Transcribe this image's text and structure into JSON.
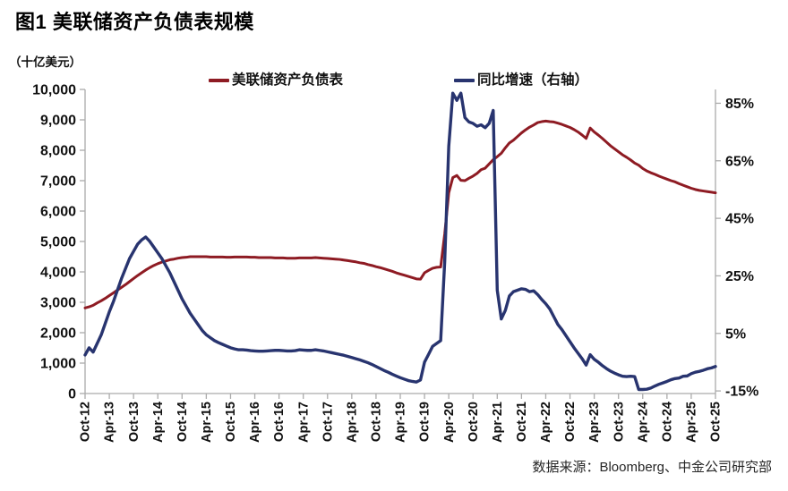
{
  "header": {
    "title": "图1  美联储资产负债表规模",
    "unit_label": "（十亿美元）"
  },
  "legend": [
    {
      "label": "美联储资产负债表",
      "color": "#8E1B23"
    },
    {
      "label": "同比增速（右轴）",
      "color": "#28346F"
    }
  ],
  "footer": {
    "source": "数据来源：Bloomberg、中金公司研究部"
  },
  "chart_data": {
    "type": "line",
    "title": "图1 美联储资产负债表规模",
    "unit": "十亿美元",
    "grid": false,
    "legend_position": "top",
    "x_frequency": "monthly",
    "x_range": [
      "Oct-12",
      "Oct-25"
    ],
    "x_tick_labels": [
      "Oct-12",
      "Apr-13",
      "Oct-13",
      "Apr-14",
      "Oct-14",
      "Apr-15",
      "Oct-15",
      "Apr-16",
      "Oct-16",
      "Apr-17",
      "Oct-17",
      "Apr-18",
      "Oct-18",
      "Apr-19",
      "Oct-19",
      "Apr-20",
      "Oct-20",
      "Apr-21",
      "Oct-21",
      "Apr-22",
      "Oct-22",
      "Apr-23",
      "Oct-23",
      "Apr-24",
      "Oct-24",
      "Apr-25",
      "Oct-25"
    ],
    "left_axis": {
      "label": "十亿美元",
      "min": 0,
      "max": 10000,
      "ticks": [
        0,
        1000,
        2000,
        3000,
        4000,
        5000,
        6000,
        7000,
        8000,
        9000,
        10000
      ],
      "format": "comma"
    },
    "right_axis": {
      "label": "%",
      "min": -15.9,
      "max": 89.8,
      "ticks": [
        -15,
        5,
        25,
        45,
        65,
        85
      ],
      "suffix": "%"
    },
    "series": [
      {
        "name": "美联储资产负债表",
        "axis": "left",
        "color": "#8E1B23",
        "width": 3,
        "values": [
          2815,
          2850,
          2900,
          2980,
          3050,
          3130,
          3220,
          3310,
          3400,
          3490,
          3580,
          3680,
          3780,
          3880,
          3970,
          4060,
          4140,
          4210,
          4270,
          4320,
          4360,
          4400,
          4420,
          4450,
          4470,
          4480,
          4500,
          4500,
          4500,
          4500,
          4500,
          4490,
          4490,
          4490,
          4490,
          4480,
          4480,
          4490,
          4490,
          4490,
          4490,
          4480,
          4480,
          4470,
          4470,
          4470,
          4470,
          4460,
          4460,
          4460,
          4450,
          4450,
          4450,
          4460,
          4460,
          4460,
          4460,
          4470,
          4460,
          4450,
          4440,
          4430,
          4420,
          4410,
          4390,
          4370,
          4350,
          4330,
          4300,
          4280,
          4240,
          4210,
          4170,
          4140,
          4100,
          4060,
          4020,
          3970,
          3930,
          3890,
          3850,
          3810,
          3770,
          3760,
          3970,
          4050,
          4120,
          4150,
          4160,
          5250,
          6600,
          7100,
          7170,
          7010,
          7000,
          7080,
          7150,
          7240,
          7360,
          7410,
          7550,
          7690,
          7790,
          7900,
          8080,
          8240,
          8330,
          8450,
          8570,
          8670,
          8760,
          8830,
          8910,
          8940,
          8960,
          8940,
          8930,
          8890,
          8850,
          8800,
          8750,
          8680,
          8600,
          8500,
          8390,
          8730,
          8600,
          8500,
          8390,
          8270,
          8150,
          8050,
          7950,
          7850,
          7770,
          7680,
          7580,
          7510,
          7400,
          7320,
          7260,
          7210,
          7150,
          7100,
          7050,
          7000,
          6960,
          6900,
          6850,
          6800,
          6750,
          6710,
          6680,
          6660,
          6640,
          6620,
          6600
        ]
      },
      {
        "name": "同比增速（右轴）",
        "axis": "right",
        "color": "#28346F",
        "width": 3.4,
        "values": [
          -2.5,
          0.0,
          -1.5,
          1.5,
          4.5,
          8.5,
          12.5,
          16,
          20,
          24,
          27.5,
          31,
          33.5,
          36,
          37.5,
          38.5,
          37,
          35,
          33,
          31,
          28.5,
          26,
          23,
          20,
          17,
          14.5,
          12,
          10,
          8,
          6,
          4.5,
          3.5,
          2.5,
          1.8,
          1.2,
          0.6,
          0,
          -0.4,
          -0.7,
          -0.7,
          -0.8,
          -1.0,
          -1.1,
          -1.2,
          -1.2,
          -1.1,
          -1.0,
          -0.9,
          -0.9,
          -1.0,
          -1.1,
          -1.1,
          -1.0,
          -0.7,
          -0.8,
          -0.9,
          -0.9,
          -0.7,
          -0.9,
          -1.1,
          -1.4,
          -1.7,
          -2.0,
          -2.3,
          -2.6,
          -3.0,
          -3.4,
          -3.8,
          -4.2,
          -4.7,
          -5.2,
          -5.8,
          -6.5,
          -7.2,
          -7.9,
          -8.5,
          -9.2,
          -9.8,
          -10.4,
          -10.9,
          -11.4,
          -11.7,
          -11.9,
          -11.2,
          -5.0,
          -2.3,
          0.5,
          1.5,
          2.5,
          30,
          70,
          88.5,
          86,
          88.5,
          80,
          78.5,
          78,
          77,
          77.5,
          76.5,
          78,
          82.5,
          20,
          10,
          13,
          18,
          19.5,
          20,
          20.5,
          20.3,
          19.5,
          19.8,
          18.5,
          16.8,
          15.3,
          13.5,
          10.8,
          8.1,
          6.3,
          4.2,
          2.1,
          0,
          -1.9,
          -3.8,
          -6.0,
          -2.4,
          -4.0,
          -5.0,
          -6.2,
          -7.2,
          -8.1,
          -8.8,
          -9.4,
          -9.9,
          -10.0,
          -9.9,
          -10.0,
          -14.5,
          -14.5,
          -14.4,
          -14.0,
          -13.3,
          -12.7,
          -12.2,
          -11.7,
          -11.1,
          -10.7,
          -10.5,
          -9.9,
          -9.8,
          -9.0,
          -8.5,
          -8.2,
          -7.8,
          -7.3,
          -7.0,
          -6.5
        ]
      }
    ],
    "source": "数据来源：Bloomberg、中金公司研究部"
  }
}
